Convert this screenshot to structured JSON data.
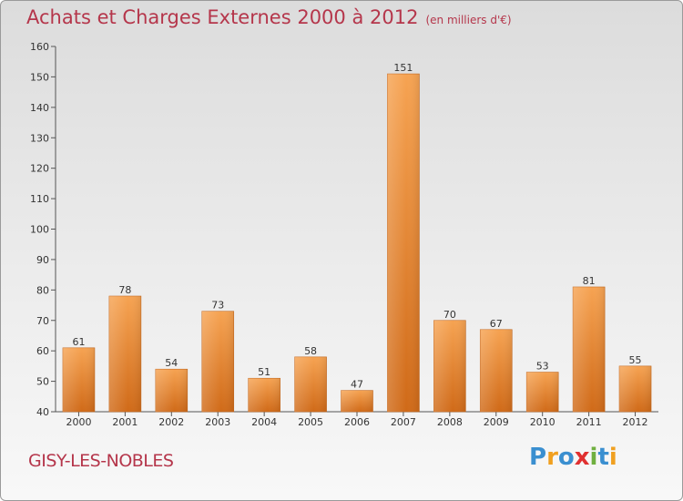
{
  "chart_data": {
    "type": "bar",
    "title": "Achats et Charges Externes 2000 à 2012",
    "subtitle": "(en milliers d'€)",
    "categories": [
      "2000",
      "2001",
      "2002",
      "2003",
      "2004",
      "2005",
      "2006",
      "2007",
      "2008",
      "2009",
      "2010",
      "2011",
      "2012"
    ],
    "values": [
      61,
      78,
      54,
      73,
      51,
      58,
      47,
      151,
      70,
      67,
      53,
      81,
      55
    ],
    "ylim": [
      40,
      160
    ],
    "yticks": [
      40,
      50,
      60,
      70,
      80,
      90,
      100,
      110,
      120,
      130,
      140,
      150,
      160
    ],
    "grid": false,
    "bar_color": "#f0913a"
  },
  "commune": "GISY-LES-NOBLES",
  "logo": {
    "letters": [
      "P",
      "r",
      "o",
      "x",
      "i",
      "t",
      "i"
    ],
    "colors": [
      "#3a8fd0",
      "#f0a020",
      "#3a8fd0",
      "#e03030",
      "#70b040",
      "#3a8fd0",
      "#f0a020"
    ]
  }
}
